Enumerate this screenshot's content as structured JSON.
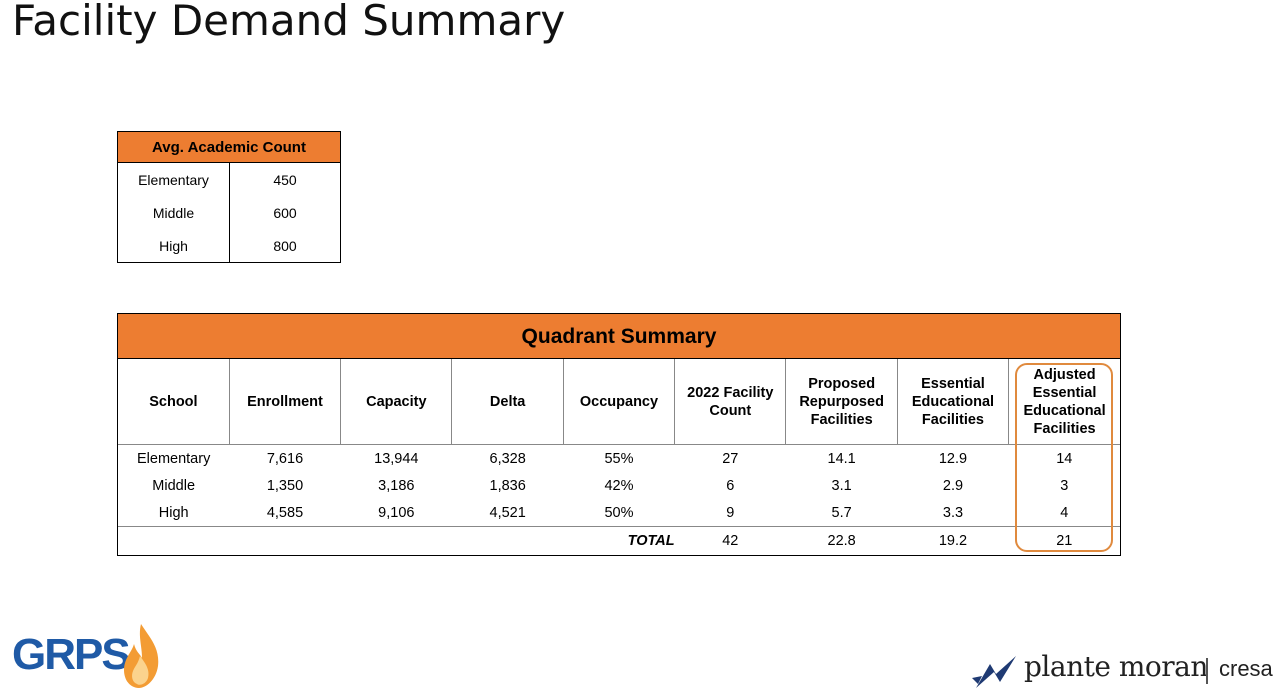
{
  "title": "Facility Demand Summary",
  "avg_table": {
    "header": "Avg. Academic Count",
    "rows": [
      {
        "label": "Elementary",
        "value": "450"
      },
      {
        "label": "Middle",
        "value": "600"
      },
      {
        "label": "High",
        "value": "800"
      }
    ]
  },
  "quadrant": {
    "title": "Quadrant Summary",
    "headers": [
      "School",
      "Enrollment",
      "Capacity",
      "Delta",
      "Occupancy",
      "2022 Facility Count",
      "Proposed Repurposed Facilities",
      "Essential Educational Facilities",
      "Adjusted Essential Educational Facilities"
    ],
    "rows": [
      [
        "Elementary",
        "7,616",
        "13,944",
        "6,328",
        "55%",
        "27",
        "14.1",
        "12.9",
        "14"
      ],
      [
        "Middle",
        "1,350",
        "3,186",
        "1,836",
        "42%",
        "6",
        "3.1",
        "2.9",
        "3"
      ],
      [
        "High",
        "4,585",
        "9,106",
        "4,521",
        "50%",
        "9",
        "5.7",
        "3.3",
        "4"
      ]
    ],
    "total": {
      "label": "TOTAL",
      "values": [
        "42",
        "22.8",
        "19.2",
        "21"
      ]
    }
  },
  "logos": {
    "grps": "GRPS",
    "plante_moran": "plante moran",
    "cresa": "cresa"
  },
  "colors": {
    "accent_orange": "#ED7D31",
    "highlight_outline": "#E08A3E",
    "grps_blue": "#1F5AA6",
    "flame_orange": "#F39C34"
  }
}
